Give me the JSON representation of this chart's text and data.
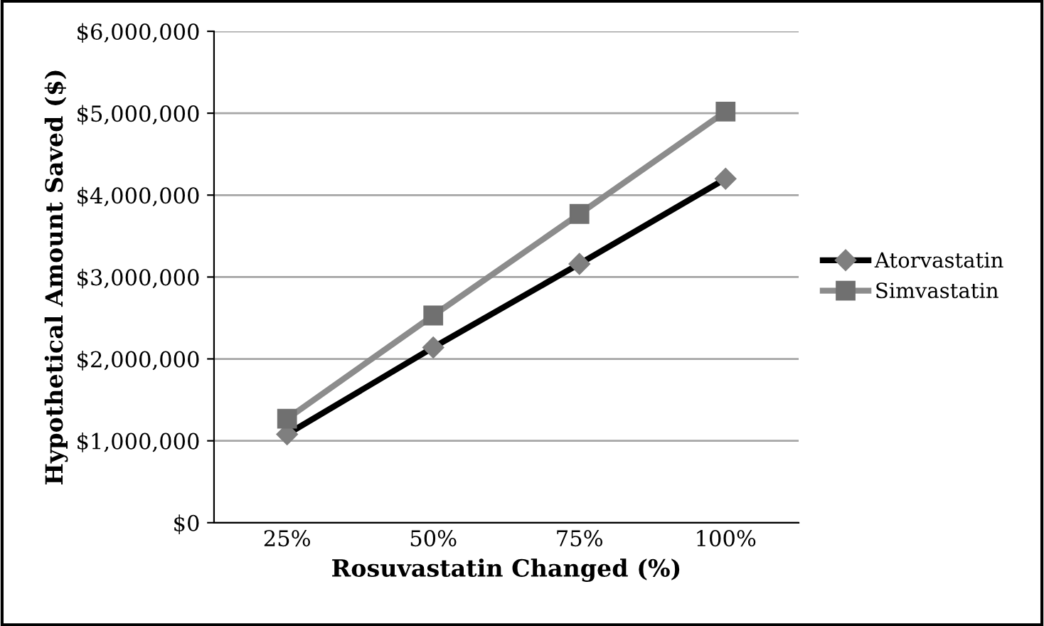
{
  "chart_data": {
    "type": "line",
    "xlabel": "Rosuvastatin Changed (%)",
    "ylabel": "Hypothetical Amount Saved ($)",
    "categories": [
      "25%",
      "50%",
      "75%",
      "100%"
    ],
    "series": [
      {
        "name": "Atorvastatin",
        "color": "#000000",
        "marker": "diamond",
        "values": [
          1080000,
          2140000,
          3160000,
          4200000
        ]
      },
      {
        "name": "Simvastatin",
        "color": "#8c8c8c",
        "marker": "square",
        "values": [
          1270000,
          2530000,
          3770000,
          5020000
        ]
      }
    ],
    "ylim": [
      0,
      6000000
    ],
    "yticks": [
      {
        "value": 0,
        "label": "$0"
      },
      {
        "value": 1000000,
        "label": "$1,000,000"
      },
      {
        "value": 2000000,
        "label": "$2,000,000"
      },
      {
        "value": 3000000,
        "label": "$3,000,000"
      },
      {
        "value": 4000000,
        "label": "$4,000,000"
      },
      {
        "value": 5000000,
        "label": "$5,000,000"
      },
      {
        "value": 6000000,
        "label": "$6,000,000"
      }
    ],
    "grid": "y",
    "legend": "right",
    "line_style": "solid"
  }
}
